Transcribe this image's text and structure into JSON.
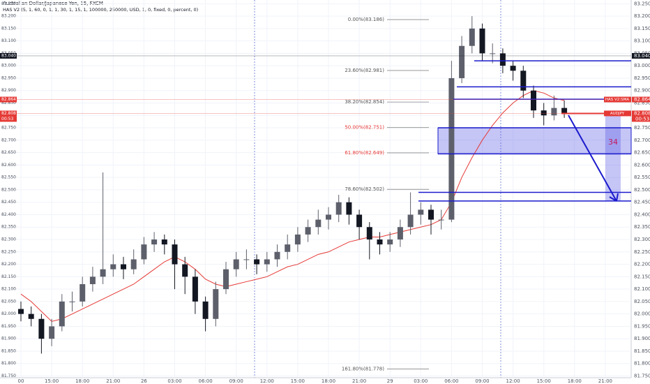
{
  "chart_data": {
    "type": "candlestick",
    "title": "Australian Dollar/Japanese Yen, 15, FXCM",
    "subtitle": "HAS V2 (5, 1, 60, 0, 1, 1, 30, 1, 15, 1, 100000, 250000, USD, 1, 0, fixed, 0, percent, 0)",
    "categories": [
      "00",
      null,
      null,
      "15:00",
      null,
      null,
      "18:00",
      null,
      null,
      "21:00",
      null,
      null,
      "26",
      null,
      null,
      "03:00",
      null,
      null,
      "06:00",
      null,
      null,
      "09:00",
      null,
      null,
      "12:00",
      null,
      null,
      "15:00",
      null,
      null,
      "18:00",
      null,
      null,
      "21:00",
      null,
      null,
      "29",
      null,
      null,
      "03:00",
      null,
      null,
      "06:00",
      null,
      null,
      "09:00",
      null,
      null,
      "12:00",
      null,
      null,
      "15:00",
      null,
      null,
      "18:00",
      null,
      null,
      "21:00",
      null,
      null
    ],
    "open": [
      82.02,
      82.0,
      81.98,
      81.9,
      81.95,
      82.05,
      82.05,
      82.12,
      82.15,
      82.18,
      82.2,
      82.18,
      82.22,
      82.28,
      82.3,
      82.28,
      82.2,
      82.15,
      82.05,
      81.98,
      82.1,
      82.18,
      82.22,
      82.22,
      82.2,
      82.22,
      82.25,
      82.28,
      82.32,
      82.35,
      82.38,
      82.4,
      82.45,
      82.4,
      82.35,
      82.3,
      82.28,
      82.3,
      82.35,
      82.4,
      82.42,
      82.38,
      82.38,
      82.95,
      83.08,
      83.15,
      83.05,
      83.05,
      83.0,
      82.98,
      82.9,
      82.82,
      82.8,
      82.83,
      null,
      null,
      null,
      null,
      null,
      null
    ],
    "high": [
      82.05,
      82.03,
      82.0,
      81.98,
      82.08,
      82.09,
      82.15,
      82.19,
      82.57,
      82.24,
      82.23,
      82.26,
      82.31,
      82.33,
      82.32,
      82.3,
      82.23,
      82.18,
      82.07,
      82.13,
      82.21,
      82.25,
      82.26,
      82.24,
      82.25,
      82.28,
      82.32,
      82.35,
      82.38,
      82.42,
      82.43,
      82.48,
      82.47,
      82.42,
      82.37,
      82.33,
      82.33,
      82.38,
      82.49,
      82.45,
      82.44,
      82.42,
      83.02,
      83.12,
      83.2,
      83.17,
      83.09,
      83.07,
      83.02,
      83.0,
      82.92,
      82.85,
      82.88,
      82.86,
      null,
      null,
      null,
      null,
      null,
      null
    ],
    "low": [
      81.97,
      81.95,
      81.84,
      81.87,
      81.93,
      82.01,
      82.03,
      82.09,
      82.12,
      82.15,
      82.14,
      82.16,
      82.2,
      82.25,
      82.24,
      82.1,
      82.08,
      82.0,
      81.93,
      81.95,
      82.08,
      82.15,
      82.18,
      82.16,
      82.17,
      82.19,
      82.22,
      82.25,
      82.29,
      82.32,
      82.34,
      82.37,
      82.36,
      82.3,
      82.22,
      82.24,
      82.25,
      82.27,
      82.32,
      82.36,
      82.32,
      82.34,
      82.37,
      82.93,
      83.05,
      83.02,
      83.01,
      82.97,
      82.94,
      82.87,
      82.79,
      82.76,
      82.78,
      82.79,
      null,
      null,
      null,
      null,
      null,
      null
    ],
    "close": [
      82.0,
      81.98,
      81.9,
      81.95,
      82.05,
      82.05,
      82.12,
      82.15,
      82.18,
      82.2,
      82.18,
      82.22,
      82.28,
      82.3,
      82.28,
      82.2,
      82.15,
      82.05,
      81.98,
      82.1,
      82.18,
      82.22,
      82.22,
      82.2,
      82.22,
      82.25,
      82.28,
      82.32,
      82.35,
      82.38,
      82.4,
      82.45,
      82.4,
      82.35,
      82.3,
      82.28,
      82.3,
      82.35,
      82.4,
      82.42,
      82.38,
      82.38,
      82.95,
      83.08,
      83.15,
      83.05,
      83.05,
      83.0,
      82.98,
      82.9,
      82.82,
      82.8,
      82.83,
      82.81,
      null,
      null,
      null,
      null,
      null,
      null
    ],
    "up_color": "#5d606b",
    "down_color": "#131722",
    "sma": {
      "color": "#e53935",
      "values": [
        82.08,
        82.05,
        82.01,
        81.97,
        81.98,
        82.0,
        82.02,
        82.04,
        82.06,
        82.08,
        82.1,
        82.12,
        82.15,
        82.18,
        82.21,
        82.23,
        82.21,
        82.18,
        82.14,
        82.12,
        82.11,
        82.12,
        82.13,
        82.14,
        82.15,
        82.17,
        82.19,
        82.2,
        82.22,
        82.24,
        82.25,
        82.27,
        82.29,
        82.3,
        82.31,
        82.31,
        82.32,
        82.33,
        82.34,
        82.35,
        82.36,
        82.38,
        82.45,
        82.55,
        82.63,
        82.7,
        82.76,
        82.81,
        82.85,
        82.88,
        82.9,
        82.89,
        82.87,
        82.86,
        null,
        null,
        null,
        null,
        null,
        null
      ]
    },
    "ylim": [
      81.743,
      83.265
    ],
    "yticks": [
      {
        "value": 81.75,
        "label": "81.750"
      },
      {
        "value": 81.8,
        "label": "81.800"
      },
      {
        "value": 81.85,
        "label": "81.850"
      },
      {
        "value": 81.9,
        "label": "81.900"
      },
      {
        "value": 81.95,
        "label": "81.950"
      },
      {
        "value": 82.0,
        "label": "82.000"
      },
      {
        "value": 82.05,
        "label": "82.050"
      },
      {
        "value": 82.1,
        "label": "82.100"
      },
      {
        "value": 82.15,
        "label": "82.150"
      },
      {
        "value": 82.2,
        "label": "82.200"
      },
      {
        "value": 82.25,
        "label": "82.250"
      },
      {
        "value": 82.3,
        "label": "82.300"
      },
      {
        "value": 82.35,
        "label": "82.350"
      },
      {
        "value": 82.4,
        "label": "82.400"
      },
      {
        "value": 82.45,
        "label": "82.450"
      },
      {
        "value": 82.5,
        "label": "82.500"
      },
      {
        "value": 82.55,
        "label": "82.550"
      },
      {
        "value": 82.6,
        "label": "82.600"
      },
      {
        "value": 82.65,
        "label": "82.650"
      },
      {
        "value": 82.7,
        "label": "82.700"
      },
      {
        "value": 82.75,
        "label": "82.750"
      },
      {
        "value": 82.8,
        "label": "82.800"
      },
      {
        "value": 82.85,
        "label": "82.850"
      },
      {
        "value": 82.9,
        "label": "82.900"
      },
      {
        "value": 82.95,
        "label": "82.950"
      },
      {
        "value": 83.0,
        "label": "83.000"
      },
      {
        "value": 83.05,
        "label": "83.050"
      },
      {
        "value": 83.1,
        "label": "83.100"
      },
      {
        "value": 83.15,
        "label": "83.150"
      },
      {
        "value": 83.2,
        "label": "83.200"
      },
      {
        "value": 83.25,
        "label": "83.250"
      }
    ],
    "grid": true,
    "fib": [
      {
        "label": "0.00%(83.186)",
        "value": 83.186,
        "color": "#555555"
      },
      {
        "label": "23.60%(82.981)",
        "value": 82.981,
        "color": "#555555"
      },
      {
        "label": "38.20%(82.854)",
        "value": 82.854,
        "color": "#555555"
      },
      {
        "label": "50.00%(82.751)",
        "value": 82.751,
        "color": "#e53935"
      },
      {
        "label": "61.80%(82.649)",
        "value": 82.649,
        "color": "#e53935"
      },
      {
        "label": "78.60%(82.502)",
        "value": 82.502,
        "color": "#555555"
      },
      {
        "label": "161.80%(81.778)",
        "value": 81.778,
        "color": "#555555"
      }
    ],
    "levels": [
      83.02,
      82.915,
      82.865,
      82.75,
      82.645,
      82.49,
      82.455
    ],
    "level_color": "#1a1acc",
    "box_label": "34",
    "price_lines": [
      {
        "value": 83.04,
        "label": "83.040",
        "color": "#131722"
      },
      {
        "value": 82.864,
        "label": "82.864",
        "name": "HAS V2:SMA",
        "color": "#e53935"
      },
      {
        "value": 82.808,
        "label": "82.808",
        "name": "AUDJPY",
        "countdown": "00:53",
        "color": "#e53935"
      }
    ]
  }
}
